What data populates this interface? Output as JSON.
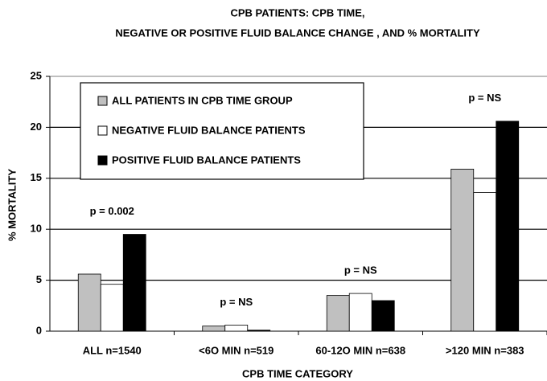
{
  "chart_data": {
    "type": "bar",
    "title": [
      "CPB PATIENTS: CPB TIME,",
      "NEGATIVE OR POSITIVE FLUID BALANCE CHANGE , AND % MORTALITY"
    ],
    "x_label": "CPB TIME CATEGORY",
    "y_label": "% MORTALITY",
    "categories": [
      "ALL n=1540",
      "<6O MIN n=519",
      "60-12O MIN n=638",
      ">120 MIN n=383"
    ],
    "series": [
      {
        "name": "ALL PATIENTS IN CPB TIME GROUP",
        "color": "#c0c0c0",
        "values": [
          5.6,
          0.5,
          3.5,
          15.9
        ]
      },
      {
        "name": "NEGATIVE FLUID BALANCE PATIENTS",
        "color": "#ffffff",
        "values": [
          4.6,
          0.6,
          3.7,
          13.6
        ]
      },
      {
        "name": "POSITIVE FLUID BALANCE PATIENTS",
        "color": "#000000",
        "values": [
          9.5,
          0.1,
          3.0,
          20.6
        ]
      }
    ],
    "annotations": [
      "p = 0.002",
      "p = NS",
      "p = NS",
      "p = NS"
    ],
    "ylim": [
      0,
      25
    ],
    "yticks": [
      0,
      5,
      10,
      15,
      20,
      25
    ],
    "grid": true,
    "legend": "upper left"
  }
}
